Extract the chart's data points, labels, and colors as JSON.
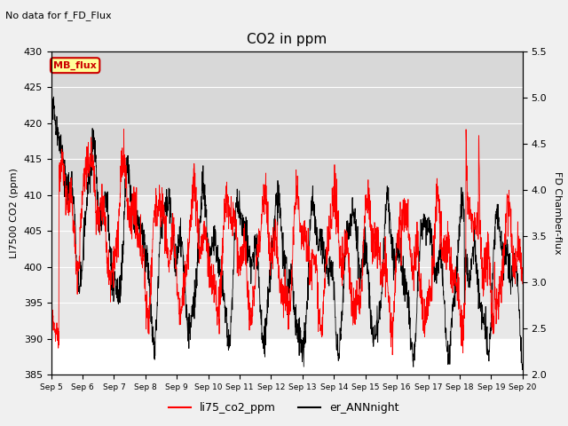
{
  "title": "CO2 in ppm",
  "top_left_text": "No data for f_FD_Flux",
  "legend_box_label": "MB_flux",
  "ylabel_left": "LI7500 CO2 (ppm)",
  "ylabel_right": "FD Chamber-flux",
  "ylim_left": [
    385,
    430
  ],
  "ylim_right": [
    2.0,
    5.5
  ],
  "yticks_left": [
    385,
    390,
    395,
    400,
    405,
    410,
    415,
    420,
    425,
    430
  ],
  "yticks_right": [
    2.0,
    2.5,
    3.0,
    3.5,
    4.0,
    4.5,
    5.0,
    5.5
  ],
  "xtick_labels": [
    "Sep 5",
    "Sep 6",
    "Sep 7",
    "Sep 8",
    "Sep 9",
    "Sep 10",
    "Sep 11",
    "Sep 12",
    "Sep 13",
    "Sep 14",
    "Sep 15",
    "Sep 16",
    "Sep 17",
    "Sep 18",
    "Sep 19",
    "Sep 20"
  ],
  "legend_entries": [
    "li75_co2_ppm",
    "er_ANNnight"
  ],
  "legend_colors": [
    "red",
    "black"
  ],
  "background_color": "#f0f0f0",
  "plot_background": "#ffffff",
  "shaded_band_top_color": "#e0e0e0",
  "shaded_band_mid_color": "#ebebeb"
}
